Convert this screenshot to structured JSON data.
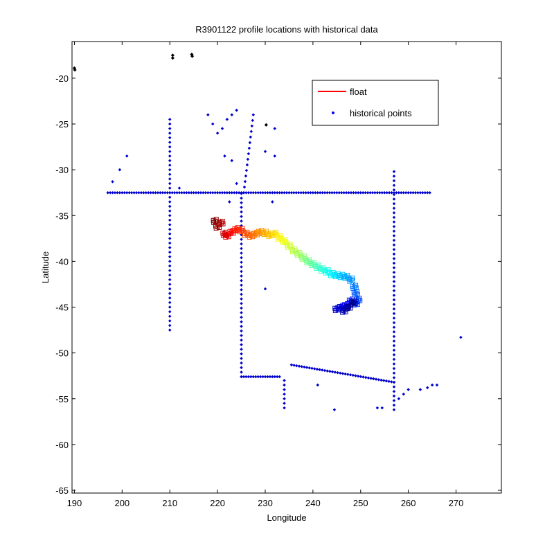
{
  "chart_data": {
    "type": "scatter",
    "title": "R3901122 profile locations with historical data",
    "xlabel": "Longitude",
    "ylabel": "Latitude",
    "xlim": [
      189.5,
      279.5
    ],
    "ylim": [
      -65.3,
      -16.0
    ],
    "xticks": [
      190,
      200,
      210,
      220,
      230,
      240,
      250,
      260,
      270
    ],
    "yticks": [
      -20,
      -25,
      -30,
      -35,
      -40,
      -45,
      -50,
      -55,
      -60,
      -65
    ],
    "grid": false,
    "legend": {
      "placement": "top-right",
      "entries": [
        {
          "label": "float",
          "color": "#ff0000",
          "marker": "line"
        },
        {
          "label": "historical points",
          "color": "#0000ff",
          "marker": "dot"
        }
      ]
    },
    "colors": {
      "historical": "#0000cc",
      "black_points": "#000000"
    },
    "black_points": [
      {
        "x": 190.0,
        "y": -18.9
      },
      {
        "x": 190.1,
        "y": -19.1
      },
      {
        "x": 210.6,
        "y": -17.5
      },
      {
        "x": 210.6,
        "y": -17.8
      },
      {
        "x": 214.6,
        "y": -17.4
      },
      {
        "x": 214.7,
        "y": -17.6
      },
      {
        "x": 230.2,
        "y": -25.1
      }
    ],
    "historical": {
      "transect_lat_32_5": {
        "y": -32.5,
        "x_from": 197.0,
        "x_to": 264.5
      },
      "transect_lon_210": {
        "x": 210.0,
        "y_from": -47.5,
        "y_to": -24.5
      },
      "transect_lon_257": {
        "x": 257.0,
        "y_from": -56.2,
        "y_to": -30.0
      },
      "transect_lon_225": {
        "x": 225.0,
        "y_from": -52.6,
        "y_to": -32.5
      },
      "transect_lat_52_6": {
        "y": -52.6,
        "x_from": 225.0,
        "x_to": 233.0
      },
      "transect_lon_234": {
        "x": 234.0,
        "y_from": -56.0,
        "y_to": -52.6
      },
      "transect_diag": {
        "x_from": 235.5,
        "y_from": -51.3,
        "x_to": 257.0,
        "y_to": -53.2
      },
      "transect_diag2": {
        "x_from": 227.5,
        "y_from": -24.0,
        "x_to": 225.5,
        "y_to": -32.5
      },
      "scattered": [
        {
          "x": 198.0,
          "y": -31.3
        },
        {
          "x": 199.5,
          "y": -30.0
        },
        {
          "x": 201.0,
          "y": -28.5
        },
        {
          "x": 212.0,
          "y": -32.0
        },
        {
          "x": 218.0,
          "y": -24.0
        },
        {
          "x": 219.0,
          "y": -25.0
        },
        {
          "x": 220.0,
          "y": -26.0
        },
        {
          "x": 221.0,
          "y": -25.5
        },
        {
          "x": 222.0,
          "y": -24.5
        },
        {
          "x": 223.0,
          "y": -24.0
        },
        {
          "x": 224.0,
          "y": -23.5
        },
        {
          "x": 221.5,
          "y": -28.5
        },
        {
          "x": 223.0,
          "y": -29.0
        },
        {
          "x": 224.0,
          "y": -31.5
        },
        {
          "x": 222.5,
          "y": -33.5
        },
        {
          "x": 230.0,
          "y": -28.0
        },
        {
          "x": 232.0,
          "y": -28.5
        },
        {
          "x": 232.0,
          "y": -25.5
        },
        {
          "x": 231.5,
          "y": -33.5
        },
        {
          "x": 230.0,
          "y": -43.0
        },
        {
          "x": 241.0,
          "y": -53.5
        },
        {
          "x": 244.5,
          "y": -56.2
        },
        {
          "x": 253.5,
          "y": -56.0
        },
        {
          "x": 254.5,
          "y": -56.0
        },
        {
          "x": 258.0,
          "y": -55.0
        },
        {
          "x": 259.0,
          "y": -54.5
        },
        {
          "x": 260.0,
          "y": -54.0
        },
        {
          "x": 262.5,
          "y": -54.0
        },
        {
          "x": 264.0,
          "y": -53.8
        },
        {
          "x": 265.0,
          "y": -53.5
        },
        {
          "x": 266.0,
          "y": -53.5
        },
        {
          "x": 271.0,
          "y": -48.3
        }
      ]
    },
    "float_track": {
      "marker": "open-square",
      "colormap": "jet",
      "points": [
        {
          "x": 219.5,
          "y": -35.6
        },
        {
          "x": 220.0,
          "y": -36.2
        },
        {
          "x": 220.8,
          "y": -35.8
        },
        {
          "x": 221.5,
          "y": -37.0
        },
        {
          "x": 222.0,
          "y": -37.2
        },
        {
          "x": 223.0,
          "y": -36.8
        },
        {
          "x": 224.0,
          "y": -36.5
        },
        {
          "x": 225.0,
          "y": -36.6
        },
        {
          "x": 226.0,
          "y": -37.0
        },
        {
          "x": 227.0,
          "y": -37.2
        },
        {
          "x": 228.0,
          "y": -37.0
        },
        {
          "x": 229.0,
          "y": -36.8
        },
        {
          "x": 230.0,
          "y": -36.9
        },
        {
          "x": 231.0,
          "y": -37.1
        },
        {
          "x": 232.0,
          "y": -37.0
        },
        {
          "x": 233.0,
          "y": -37.4
        },
        {
          "x": 234.0,
          "y": -37.8
        },
        {
          "x": 235.0,
          "y": -38.3
        },
        {
          "x": 236.0,
          "y": -38.8
        },
        {
          "x": 237.0,
          "y": -39.2
        },
        {
          "x": 238.0,
          "y": -39.6
        },
        {
          "x": 239.0,
          "y": -40.0
        },
        {
          "x": 240.0,
          "y": -40.3
        },
        {
          "x": 241.0,
          "y": -40.6
        },
        {
          "x": 242.0,
          "y": -40.9
        },
        {
          "x": 243.0,
          "y": -41.1
        },
        {
          "x": 244.0,
          "y": -41.4
        },
        {
          "x": 245.0,
          "y": -41.5
        },
        {
          "x": 246.0,
          "y": -41.6
        },
        {
          "x": 247.0,
          "y": -41.7
        },
        {
          "x": 248.0,
          "y": -42.0
        },
        {
          "x": 248.7,
          "y": -42.8
        },
        {
          "x": 249.0,
          "y": -43.5
        },
        {
          "x": 249.5,
          "y": -44.2
        },
        {
          "x": 249.0,
          "y": -44.6
        },
        {
          "x": 248.0,
          "y": -44.3
        },
        {
          "x": 247.0,
          "y": -44.8
        },
        {
          "x": 246.0,
          "y": -45.0
        },
        {
          "x": 245.0,
          "y": -45.2
        },
        {
          "x": 246.5,
          "y": -45.4
        },
        {
          "x": 247.5,
          "y": -45.0
        },
        {
          "x": 248.5,
          "y": -44.5
        }
      ]
    }
  }
}
